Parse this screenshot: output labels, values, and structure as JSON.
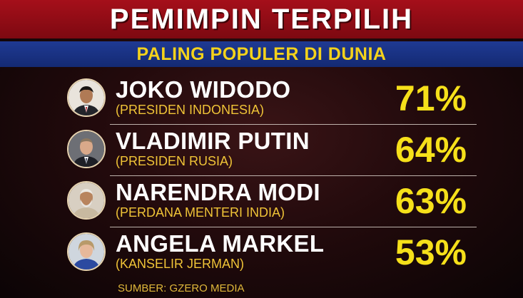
{
  "header": {
    "title": "PEMIMPIN TERPILIH",
    "subtitle": "PALING POPULER DI DUNIA"
  },
  "leaders": [
    {
      "name": "JOKO WIDODO",
      "role": "(PRESIDEN INDONESIA)",
      "percent": "71%",
      "value": 71,
      "avatar_icon": "joko-widodo-portrait"
    },
    {
      "name": "VLADIMIR PUTIN",
      "role": "(PRESIDEN RUSIA)",
      "percent": "64%",
      "value": 64,
      "avatar_icon": "vladimir-putin-portrait"
    },
    {
      "name": "NARENDRA MODI",
      "role": "(PERDANA MENTERI INDIA)",
      "percent": "63%",
      "value": 63,
      "avatar_icon": "narendra-modi-portrait"
    },
    {
      "name": "ANGELA MARKEL",
      "role": "(KANSELIR JERMAN)",
      "percent": "53%",
      "value": 53,
      "avatar_icon": "angela-markel-portrait"
    }
  ],
  "footer": {
    "source": "SUMBER: GZERO MEDIA"
  },
  "colors": {
    "title_bar": "#a50f1a",
    "subtitle_bar": "#1f3a93",
    "subtitle_text": "#f4d21b",
    "percent_text": "#f6e01a",
    "role_text": "#f0c437"
  }
}
